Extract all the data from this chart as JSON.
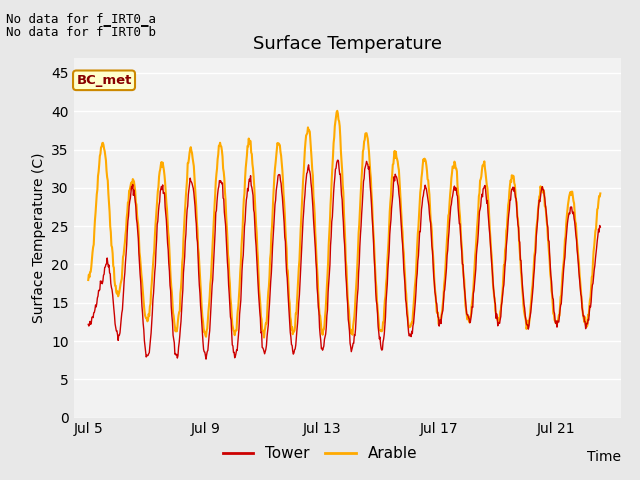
{
  "title": "Surface Temperature",
  "ylabel": "Surface Temperature (C)",
  "xlabel": "Time",
  "xlim_days": [
    4.5,
    23.2
  ],
  "ylim": [
    0,
    47
  ],
  "yticks": [
    0,
    5,
    10,
    15,
    20,
    25,
    30,
    35,
    40,
    45
  ],
  "xtick_labels": [
    "Jul 5",
    "Jul 9",
    "Jul 13",
    "Jul 17",
    "Jul 21"
  ],
  "xtick_days": [
    5,
    9,
    13,
    17,
    21
  ],
  "tower_color": "#cc0000",
  "arable_color": "#ffaa00",
  "bg_color": "#e8e8e8",
  "plot_bg_color": "#f2f2f2",
  "grid_color": "#ffffff",
  "annotation_text1": "No data for f_IRT0_a",
  "annotation_text2": "No data for f̅IRT0̅b",
  "label_box_text": "BC_met",
  "label_box_facecolor": "#ffffcc",
  "label_box_edgecolor": "#cc8800",
  "label_box_textcolor": "#880000",
  "legend_tower": "Tower",
  "legend_arable": "Arable",
  "title_fontsize": 13,
  "axis_label_fontsize": 10,
  "tick_fontsize": 10,
  "annot_fontsize": 9
}
